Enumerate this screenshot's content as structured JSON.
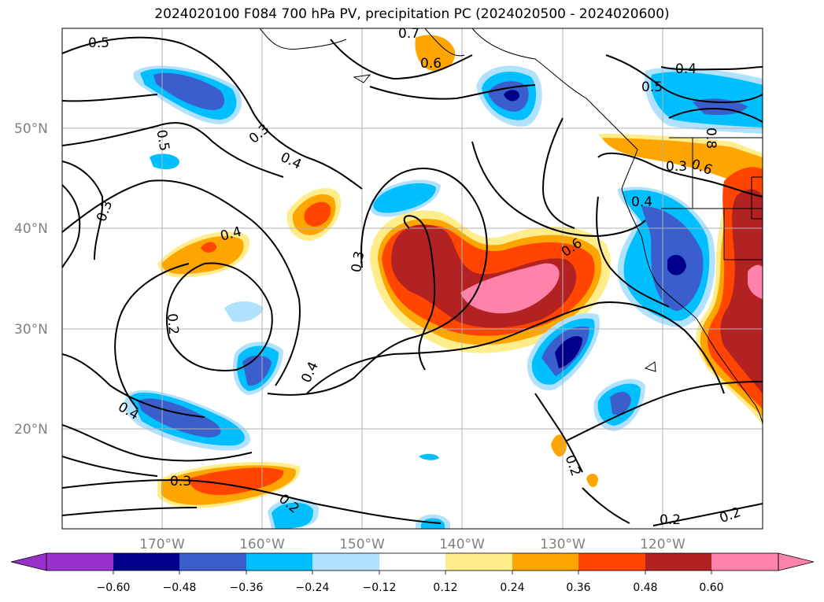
{
  "title": "2024020100 F084 700 hPa PV, precipitation PC (2024020500 - 2024020600)",
  "lat_labels": [
    "50°N",
    "40°N",
    "30°N",
    "20°N"
  ],
  "lon_labels": [
    "170°W",
    "160°W",
    "150°W",
    "140°W",
    "130°W",
    "120°W"
  ],
  "colorbar": {
    "tick_labels": [
      "−0.60",
      "−0.48",
      "−0.36",
      "−0.24",
      "−0.12",
      "0.12",
      "0.24",
      "0.36",
      "0.48",
      "0.60"
    ],
    "colors": [
      "#9932cc",
      "#00008b",
      "#3a5fcd",
      "#00bfff",
      "#b0e2ff",
      "#ffffff",
      "#ffec8b",
      "#ffa500",
      "#ff4500",
      "#b22222",
      "#ff82ab"
    ]
  },
  "contour_labels": [
    {
      "text": "0.5"
    },
    {
      "text": "0.7"
    },
    {
      "text": "0.6"
    },
    {
      "text": "0.4"
    },
    {
      "text": "0.5"
    },
    {
      "text": "0.3"
    },
    {
      "text": "0.5"
    },
    {
      "text": "0.4"
    },
    {
      "text": "0.3"
    },
    {
      "text": "0.4"
    },
    {
      "text": "0.3"
    },
    {
      "text": "0.6"
    },
    {
      "text": "0.8"
    },
    {
      "text": "0.3"
    },
    {
      "text": "0.6"
    },
    {
      "text": "0.4"
    },
    {
      "text": "0.2"
    },
    {
      "text": "0.4"
    },
    {
      "text": "0.4"
    },
    {
      "text": "0.3"
    },
    {
      "text": "0.2"
    },
    {
      "text": "0.2"
    },
    {
      "text": "0.2"
    },
    {
      "text": "0.2"
    }
  ],
  "chart_data": {
    "type": "heatmap",
    "description_fields": "precipitation PC filled contours with 700 hPa PV line contours",
    "levels": [
      -0.6,
      -0.48,
      -0.36,
      -0.24,
      -0.12,
      0.12,
      0.24,
      0.36,
      0.48,
      0.6
    ],
    "lon_range": [
      -180,
      -110
    ],
    "lat_range": [
      10,
      60
    ],
    "pv_contour_levels_labeled": [
      0.2,
      0.3,
      0.4,
      0.5,
      0.6,
      0.7,
      0.8
    ]
  }
}
